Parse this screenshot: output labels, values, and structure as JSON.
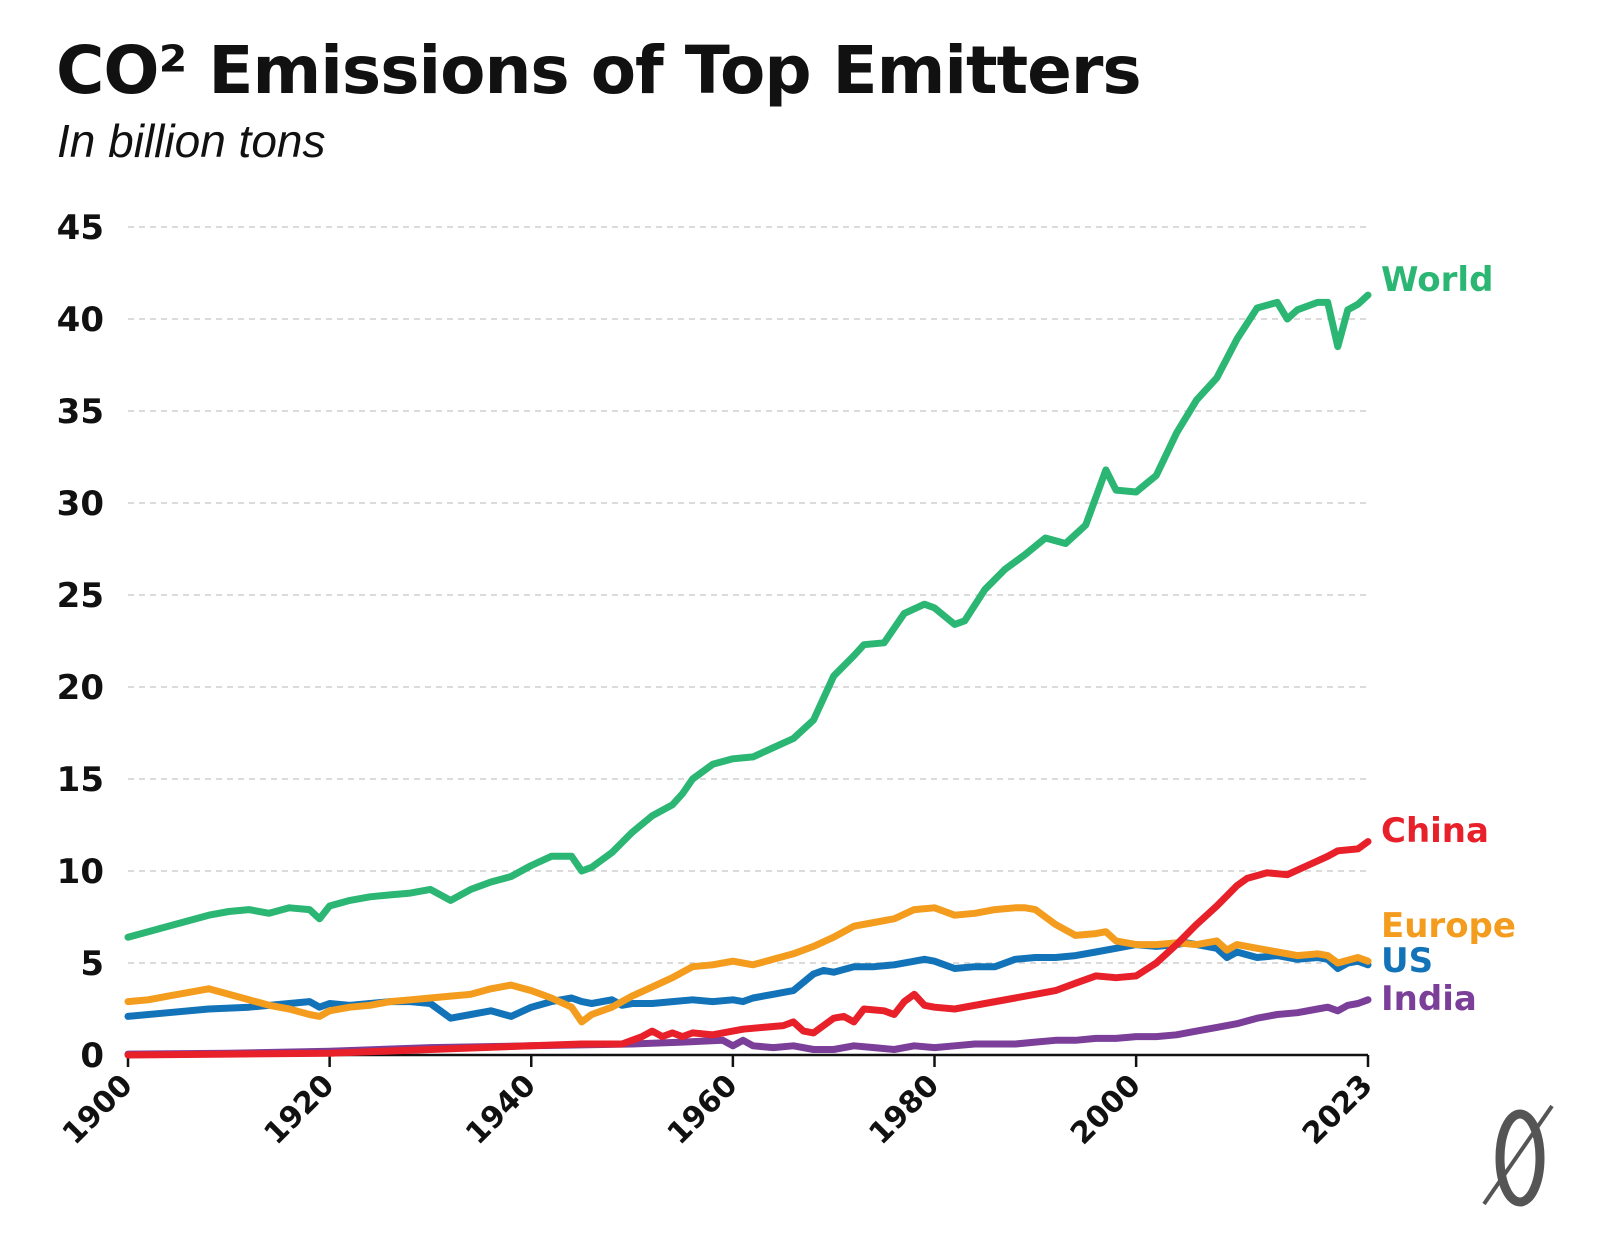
{
  "chart_data": {
    "type": "line",
    "title": "CO² Emissions of Top Emitters",
    "subtitle": "In billion tons",
    "xlabel": "",
    "ylabel": "",
    "ylim": [
      0,
      45
    ],
    "xlim": [
      1900,
      2023
    ],
    "yticks": [
      "0",
      "5",
      "10",
      "15",
      "20",
      "25",
      "30",
      "35",
      "40",
      "45"
    ],
    "xticks": [
      "1900",
      "1920",
      "1940",
      "1960",
      "1980",
      "2000",
      "2023"
    ],
    "grid": "horizontal dashed",
    "legend": "direct labels at line ends",
    "series": [
      {
        "name": "World",
        "color": "#2bb673",
        "x": [
          1900,
          1902,
          1904,
          1906,
          1908,
          1910,
          1912,
          1914,
          1916,
          1918,
          1919,
          1920,
          1922,
          1924,
          1926,
          1928,
          1930,
          1932,
          1934,
          1936,
          1938,
          1940,
          1942,
          1944,
          1945,
          1946,
          1948,
          1950,
          1952,
          1954,
          1955,
          1956,
          1958,
          1960,
          1962,
          1964,
          1966,
          1968,
          1970,
          1972,
          1973,
          1975,
          1977,
          1979,
          1980,
          1982,
          1983,
          1985,
          1987,
          1989,
          1991,
          1993,
          1995,
          1997,
          1998,
          2000,
          2002,
          2004,
          2006,
          2008,
          2010,
          2012,
          2014,
          2015,
          2016,
          2018,
          2019,
          2020,
          2021,
          2022,
          2023
        ],
        "values": [
          6.4,
          6.7,
          7.0,
          7.3,
          7.6,
          7.8,
          7.9,
          7.7,
          8.0,
          7.9,
          7.4,
          8.1,
          8.4,
          8.6,
          8.7,
          8.8,
          9.0,
          8.4,
          9.0,
          9.4,
          9.7,
          10.3,
          10.8,
          10.8,
          10.0,
          10.2,
          11.0,
          12.1,
          13.0,
          13.6,
          14.2,
          15.0,
          15.8,
          16.1,
          16.2,
          16.7,
          17.2,
          18.2,
          20.6,
          21.7,
          22.3,
          22.4,
          24.0,
          24.5,
          24.3,
          23.4,
          23.6,
          25.3,
          26.4,
          27.2,
          28.1,
          27.8,
          28.8,
          31.8,
          30.7,
          30.6,
          31.5,
          33.8,
          35.6,
          36.8,
          38.9,
          40.6,
          40.9,
          40.0,
          40.5,
          40.9,
          40.9,
          38.5,
          40.5,
          40.8,
          41.3
        ]
      },
      {
        "name": "China",
        "color": "#e8202a",
        "x": [
          1900,
          1910,
          1920,
          1930,
          1940,
          1945,
          1949,
          1950,
          1951,
          1952,
          1953,
          1954,
          1955,
          1956,
          1958,
          1960,
          1961,
          1963,
          1965,
          1966,
          1967,
          1968,
          1969,
          1970,
          1971,
          1972,
          1973,
          1975,
          1976,
          1977,
          1978,
          1979,
          1980,
          1982,
          1985,
          1988,
          1990,
          1992,
          1994,
          1996,
          1998,
          2000,
          2002,
          2004,
          2006,
          2008,
          2010,
          2011,
          2013,
          2015,
          2017,
          2019,
          2020,
          2022,
          2023
        ],
        "values": [
          0.0,
          0.05,
          0.1,
          0.3,
          0.5,
          0.6,
          0.6,
          0.8,
          1.0,
          1.3,
          1.0,
          1.2,
          1.0,
          1.2,
          1.1,
          1.3,
          1.4,
          1.5,
          1.6,
          1.8,
          1.3,
          1.2,
          1.6,
          2.0,
          2.1,
          1.8,
          2.5,
          2.4,
          2.2,
          2.9,
          3.3,
          2.7,
          2.6,
          2.5,
          2.8,
          3.1,
          3.3,
          3.5,
          3.9,
          4.3,
          4.2,
          4.3,
          5.0,
          6.0,
          7.1,
          8.1,
          9.2,
          9.6,
          9.9,
          9.8,
          10.3,
          10.8,
          11.1,
          11.2,
          11.6
        ]
      },
      {
        "name": "Europe",
        "color": "#f39c1e",
        "x": [
          1900,
          1902,
          1904,
          1906,
          1908,
          1910,
          1912,
          1914,
          1916,
          1918,
          1919,
          1920,
          1922,
          1924,
          1926,
          1928,
          1930,
          1932,
          1934,
          1936,
          1938,
          1940,
          1942,
          1944,
          1945,
          1946,
          1948,
          1950,
          1952,
          1954,
          1956,
          1958,
          1960,
          1962,
          1964,
          1966,
          1968,
          1970,
          1972,
          1974,
          1976,
          1978,
          1980,
          1982,
          1984,
          1986,
          1988,
          1989,
          1990,
          1992,
          1994,
          1996,
          1997,
          1998,
          2000,
          2002,
          2004,
          2006,
          2008,
          2009,
          2010,
          2012,
          2014,
          2016,
          2018,
          2019,
          2020,
          2022,
          2023
        ],
        "values": [
          2.9,
          3.0,
          3.2,
          3.4,
          3.6,
          3.3,
          3.0,
          2.7,
          2.5,
          2.2,
          2.1,
          2.4,
          2.6,
          2.7,
          2.9,
          3.0,
          3.1,
          3.2,
          3.3,
          3.6,
          3.8,
          3.5,
          3.1,
          2.6,
          1.8,
          2.2,
          2.6,
          3.2,
          3.7,
          4.2,
          4.8,
          4.9,
          5.1,
          4.9,
          5.2,
          5.5,
          5.9,
          6.4,
          7.0,
          7.2,
          7.4,
          7.9,
          8.0,
          7.6,
          7.7,
          7.9,
          8.0,
          8.0,
          7.9,
          7.1,
          6.5,
          6.6,
          6.7,
          6.2,
          6.0,
          6.0,
          6.1,
          6.0,
          6.2,
          5.7,
          6.0,
          5.8,
          5.6,
          5.4,
          5.5,
          5.4,
          5.0,
          5.3,
          5.1
        ]
      },
      {
        "name": "US",
        "color": "#1273b8",
        "x": [
          1900,
          1904,
          1908,
          1912,
          1916,
          1918,
          1919,
          1920,
          1922,
          1924,
          1926,
          1928,
          1930,
          1932,
          1934,
          1936,
          1938,
          1940,
          1942,
          1944,
          1945,
          1946,
          1948,
          1949,
          1950,
          1952,
          1954,
          1956,
          1958,
          1960,
          1961,
          1962,
          1964,
          1966,
          1968,
          1969,
          1970,
          1972,
          1974,
          1976,
          1978,
          1979,
          1980,
          1982,
          1984,
          1986,
          1988,
          1990,
          1992,
          1994,
          1996,
          1998,
          2000,
          2002,
          2004,
          2005,
          2006,
          2008,
          2009,
          2010,
          2012,
          2014,
          2016,
          2018,
          2019,
          2020,
          2021,
          2022,
          2023
        ],
        "values": [
          2.1,
          2.3,
          2.5,
          2.6,
          2.8,
          2.9,
          2.6,
          2.8,
          2.7,
          2.8,
          2.9,
          2.9,
          2.8,
          2.0,
          2.2,
          2.4,
          2.1,
          2.6,
          2.9,
          3.1,
          2.9,
          2.8,
          3.0,
          2.7,
          2.8,
          2.8,
          2.9,
          3.0,
          2.9,
          3.0,
          2.9,
          3.1,
          3.3,
          3.5,
          4.4,
          4.6,
          4.5,
          4.8,
          4.8,
          4.9,
          5.1,
          5.2,
          5.1,
          4.7,
          4.8,
          4.8,
          5.2,
          5.3,
          5.3,
          5.4,
          5.6,
          5.8,
          6.0,
          5.9,
          6.0,
          6.1,
          6.0,
          5.8,
          5.3,
          5.6,
          5.3,
          5.4,
          5.2,
          5.3,
          5.2,
          4.7,
          5.0,
          5.1,
          4.9
        ]
      },
      {
        "name": "India",
        "color": "#7b3f99",
        "x": [
          1900,
          1910,
          1920,
          1930,
          1940,
          1950,
          1955,
          1959,
          1960,
          1961,
          1962,
          1964,
          1966,
          1968,
          1970,
          1972,
          1974,
          1976,
          1978,
          1980,
          1982,
          1984,
          1986,
          1988,
          1990,
          1992,
          1994,
          1996,
          1998,
          2000,
          2002,
          2004,
          2006,
          2008,
          2010,
          2012,
          2014,
          2016,
          2018,
          2019,
          2020,
          2021,
          2022,
          2023
        ],
        "values": [
          0.05,
          0.1,
          0.2,
          0.4,
          0.5,
          0.6,
          0.7,
          0.8,
          0.5,
          0.8,
          0.5,
          0.4,
          0.5,
          0.3,
          0.3,
          0.5,
          0.4,
          0.3,
          0.5,
          0.4,
          0.5,
          0.6,
          0.6,
          0.6,
          0.7,
          0.8,
          0.8,
          0.9,
          0.9,
          1.0,
          1.0,
          1.1,
          1.3,
          1.5,
          1.7,
          2.0,
          2.2,
          2.3,
          2.5,
          2.6,
          2.4,
          2.7,
          2.8,
          3.0
        ]
      }
    ]
  },
  "logo": {
    "glyph": "0",
    "name": "publisher-logo"
  }
}
